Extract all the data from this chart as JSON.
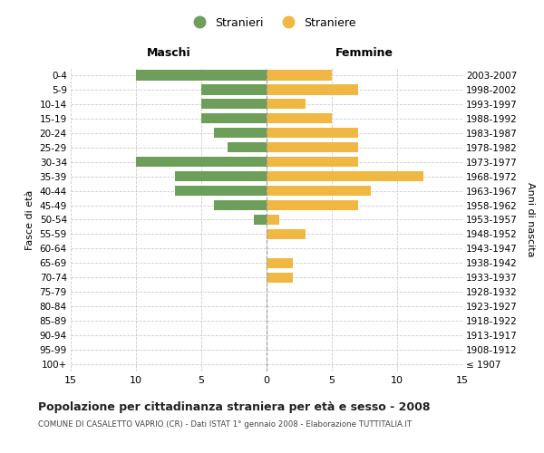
{
  "age_groups": [
    "100+",
    "95-99",
    "90-94",
    "85-89",
    "80-84",
    "75-79",
    "70-74",
    "65-69",
    "60-64",
    "55-59",
    "50-54",
    "45-49",
    "40-44",
    "35-39",
    "30-34",
    "25-29",
    "20-24",
    "15-19",
    "10-14",
    "5-9",
    "0-4"
  ],
  "birth_years": [
    "≤ 1907",
    "1908-1912",
    "1913-1917",
    "1918-1922",
    "1923-1927",
    "1928-1932",
    "1933-1937",
    "1938-1942",
    "1943-1947",
    "1948-1952",
    "1953-1957",
    "1958-1962",
    "1963-1967",
    "1968-1972",
    "1973-1977",
    "1978-1982",
    "1983-1987",
    "1988-1992",
    "1993-1997",
    "1998-2002",
    "2003-2007"
  ],
  "maschi": [
    0,
    0,
    0,
    0,
    0,
    0,
    0,
    0,
    0,
    0,
    1,
    4,
    7,
    7,
    10,
    3,
    4,
    5,
    5,
    5,
    10
  ],
  "femmine": [
    0,
    0,
    0,
    0,
    0,
    0,
    2,
    2,
    0,
    3,
    1,
    7,
    8,
    12,
    7,
    7,
    7,
    5,
    3,
    7,
    5
  ],
  "male_color": "#6d9e5a",
  "female_color": "#f0b843",
  "background_color": "#ffffff",
  "grid_color": "#cccccc",
  "title": "Popolazione per cittadinanza straniera per età e sesso - 2008",
  "subtitle": "COMUNE DI CASALETTO VAPRIO (CR) - Dati ISTAT 1° gennaio 2008 - Elaborazione TUTTITALIA.IT",
  "xlabel_left": "Maschi",
  "xlabel_right": "Femmine",
  "ylabel_left": "Fasce di età",
  "ylabel_right": "Anni di nascita",
  "legend_male": "Stranieri",
  "legend_female": "Straniere",
  "xlim": 15
}
